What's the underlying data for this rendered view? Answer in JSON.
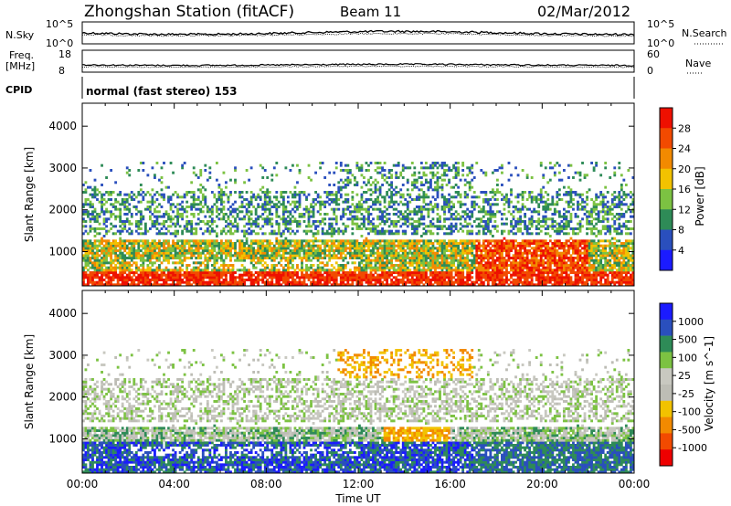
{
  "header": {
    "title": "Zhongshan Station (fitACF)",
    "beam": "Beam 11",
    "date": "02/Mar/2012"
  },
  "noise_panel": {
    "left_label": "N.Sky",
    "right_label": "N.Search",
    "left_ticks": [
      "10^5",
      "10^0"
    ],
    "right_ticks": [
      "10^5",
      "10^0"
    ]
  },
  "freq_panel": {
    "left_label_1": "Freq.",
    "left_label_2": "[MHz]",
    "left_ticks": [
      "18",
      "8"
    ],
    "right_label": "Nave",
    "right_ticks": [
      "60",
      "0"
    ]
  },
  "cpid_panel": {
    "label": "CPID",
    "text": "normal (fast stereo) 153"
  },
  "colors": {
    "power": [
      "#1b1bff",
      "#2a4fbd",
      "#2e8b57",
      "#7cc242",
      "#f2c200",
      "#f28a00",
      "#f24a00",
      "#ee1000"
    ],
    "velocity": [
      "#ee0000",
      "#f24a00",
      "#f28a00",
      "#f2c200",
      "#bdbdb5",
      "#c8c8c0",
      "#7cc242",
      "#2e8b57",
      "#2a4fbd",
      "#1b1bff"
    ]
  },
  "chart_data": [
    {
      "type": "heatmap",
      "name": "power",
      "xlabel": "",
      "ylabel": "Slant Range [km]",
      "x_ticks": [
        "00:00",
        "04:00",
        "08:00",
        "12:00",
        "16:00",
        "20:00",
        "00:00"
      ],
      "y_ticks": [
        1000,
        2000,
        3000,
        4000
      ],
      "ylim": [
        180,
        4550
      ],
      "xlim_hours": [
        0,
        24
      ],
      "colorbar": {
        "label": "Power [dB]",
        "ticks": [
          4,
          8,
          12,
          16,
          20,
          24,
          28
        ],
        "range": [
          0,
          32
        ]
      }
    },
    {
      "type": "heatmap",
      "name": "velocity",
      "xlabel": "Time UT",
      "ylabel": "Slant Range [km]",
      "x_ticks": [
        "00:00",
        "04:00",
        "08:00",
        "12:00",
        "16:00",
        "20:00",
        "00:00"
      ],
      "y_ticks": [
        1000,
        2000,
        3000,
        4000
      ],
      "ylim": [
        180,
        4550
      ],
      "xlim_hours": [
        0,
        24
      ],
      "colorbar": {
        "label": "Velocity [m s^-1]",
        "ticks": [
          "1000",
          "500",
          "100",
          "25",
          "-25",
          "-100",
          "-500",
          "-1000"
        ]
      }
    }
  ]
}
